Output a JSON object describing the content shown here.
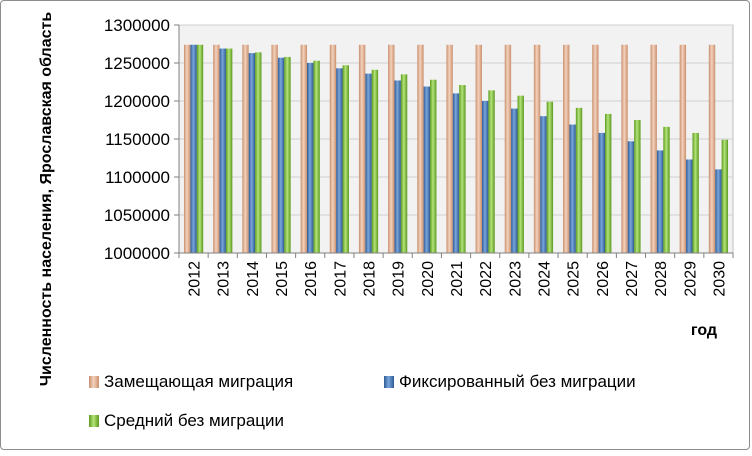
{
  "chart_data": {
    "type": "bar",
    "title": "",
    "xlabel": "год",
    "ylabel": "Численность населения, Ярославская область",
    "ylim": [
      1000000,
      1300000
    ],
    "yticks": [
      "1000000",
      "1050000",
      "1100000",
      "1150000",
      "1200000",
      "1250000",
      "1300000"
    ],
    "categories": [
      "2012",
      "2013",
      "2014",
      "2015",
      "2016",
      "2017",
      "2018",
      "2019",
      "2020",
      "2021",
      "2022",
      "2023",
      "2024",
      "2025",
      "2026",
      "2027",
      "2028",
      "2029",
      "2030"
    ],
    "legend_position": "bottom",
    "grid": true,
    "series": [
      {
        "name": "Замещающая миграция",
        "color": "#e6b89c",
        "values": [
          1274000,
          1274000,
          1274000,
          1274000,
          1274000,
          1274000,
          1274000,
          1274000,
          1274000,
          1274000,
          1274000,
          1274000,
          1274000,
          1274000,
          1274000,
          1274000,
          1274000,
          1274000,
          1274000
        ]
      },
      {
        "name": "Фиксированный без миграции",
        "color": "#4f81bd",
        "values": [
          1274000,
          1269000,
          1263000,
          1257000,
          1250000,
          1243000,
          1236000,
          1227000,
          1219000,
          1210000,
          1200000,
          1190000,
          1180000,
          1169000,
          1158000,
          1147000,
          1135000,
          1123000,
          1110000
        ]
      },
      {
        "name": "Средний без миграции",
        "color": "#8cc63f",
        "values": [
          1274000,
          1269000,
          1264000,
          1258000,
          1253000,
          1247000,
          1241000,
          1235000,
          1228000,
          1221000,
          1214000,
          1207000,
          1199000,
          1191000,
          1183000,
          1175000,
          1166000,
          1158000,
          1149000
        ]
      }
    ]
  }
}
